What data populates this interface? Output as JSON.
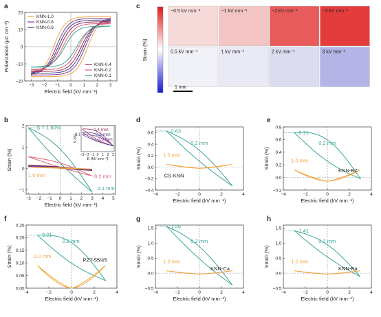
{
  "panel_letters": [
    "a",
    "b",
    "c",
    "d",
    "e",
    "f",
    "g",
    "h"
  ],
  "chart_data": [
    {
      "panel": "a",
      "type": "line",
      "xlabel": "Electric field (kV mm⁻¹)",
      "ylabel": "Polarization (μC cm⁻²)",
      "xlim": [
        -3.5,
        3.5
      ],
      "ylim": [
        -20,
        20
      ],
      "xticks": [
        -3,
        -2,
        -1,
        0,
        1,
        2,
        3
      ],
      "yticks": [
        -20,
        -10,
        0,
        10,
        20
      ],
      "legend_top": [
        "KNN-1.0",
        "KNN-0.8",
        "KNN-0.6"
      ],
      "legend_bottom": [
        "KNN-0.4",
        "KNN-0.2",
        "KNN-0.1"
      ],
      "series": [
        {
          "name": "KNN-1.0",
          "color": "#f2a640",
          "Ps": 17.5,
          "Ec": 1.3
        },
        {
          "name": "KNN-0.8",
          "color": "#7a3c9a",
          "Ps": 16.5,
          "Ec": 1.1
        },
        {
          "name": "KNN-0.6",
          "color": "#3c3c8c",
          "Ps": 15.5,
          "Ec": 0.95
        },
        {
          "name": "KNN-0.4",
          "color": "#9b2a4e",
          "Ps": 14.5,
          "Ec": 0.8
        },
        {
          "name": "KNN-0.2",
          "color": "#e0607a",
          "Ps": 13.5,
          "Ec": 0.6
        },
        {
          "name": "KNN-0.1",
          "color": "#3aa596",
          "Ps": 12,
          "Ec": 0.45
        }
      ]
    },
    {
      "panel": "b",
      "type": "line",
      "xlabel": "Electric field (kV mm⁻¹)",
      "ylabel": "Strain (%)",
      "xlim": [
        -3.2,
        5.2
      ],
      "ylim": [
        -1.2,
        2.0
      ],
      "xticks": [
        -3,
        -2,
        -1,
        0,
        1,
        2,
        3,
        4,
        5
      ],
      "yticks": [
        -1,
        0,
        1,
        2
      ],
      "annotations": [
        "S = 1.90%",
        "1.0 mm",
        "0.2 mm",
        "0.1 mm"
      ],
      "inset": {
        "xlabel": "E (kV mm⁻¹)",
        "ylabel": "S (%)",
        "xticks": [
          -3,
          -2,
          -1,
          0,
          1,
          2,
          3
        ],
        "ytick": "0.1",
        "labels": [
          "0.4 mm",
          "0.6 mm",
          "0.8 mm"
        ]
      },
      "series": [
        {
          "name": "0.1 mm",
          "color": "#3aa596",
          "Smax": 1.9,
          "Smin": -1.1,
          "width": 0.5
        },
        {
          "name": "0.2 mm",
          "color": "#e0607a",
          "Smax": 0.55,
          "Smin": -0.35,
          "width": 0.15
        },
        {
          "name": "0.4 mm",
          "color": "#9b2a4e",
          "Smax": 0.15,
          "Smin": -0.1,
          "width": 0.05
        },
        {
          "name": "0.6 mm",
          "color": "#3c3c8c",
          "Smax": 0.12,
          "Smin": -0.08,
          "width": 0.04
        },
        {
          "name": "0.8 mm",
          "color": "#7a3c9a",
          "Smax": 0.1,
          "Smin": -0.06,
          "width": 0.03
        },
        {
          "name": "1.0 mm",
          "color": "#f2a640",
          "Smax": 0.06,
          "Smin": -0.03,
          "width": 0.02
        }
      ]
    },
    {
      "panel": "c",
      "type": "heatmap",
      "colorbar_label": "Strain (%)",
      "scale_bar": "1 mm",
      "tiles": [
        {
          "label": "−0.5 kV mm⁻¹",
          "color": "#f6dada"
        },
        {
          "label": "−1 kV mm⁻¹",
          "color": "#f2c4c4"
        },
        {
          "label": "−2 kV mm⁻¹",
          "color": "#e85b5b"
        },
        {
          "label": "−3 kV mm⁻¹",
          "color": "#e43c3c"
        },
        {
          "label": "0.5 kV mm⁻¹",
          "color": "#f1f1f8"
        },
        {
          "label": "1 kV mm⁻¹",
          "color": "#eaeaf6"
        },
        {
          "label": "2 kV mm⁻¹",
          "color": "#dcdcf1"
        },
        {
          "label": "3 kV mm⁻¹",
          "color": "#b4b4e6"
        }
      ]
    },
    {
      "panel": "d",
      "type": "line",
      "label": "CS-KNN",
      "xlabel": "Electric field (kV mm⁻¹)",
      "ylabel": "Strain (%)",
      "xlim": [
        -4,
        4
      ],
      "ylim": [
        -0.4,
        0.7
      ],
      "xticks": [
        -4,
        -2,
        0,
        2,
        4
      ],
      "yticks": [
        -0.4,
        -0.2,
        0,
        0.2,
        0.4,
        0.6
      ],
      "peak_label": "0.63",
      "peak": 0.63,
      "min": -0.33,
      "width": 0.14,
      "thick_max": 0.05,
      "thick_min": -0.02,
      "series_names": [
        "0.2 mm",
        "1.0 mm"
      ]
    },
    {
      "panel": "e",
      "type": "line",
      "label": "KNN-BZ",
      "xlabel": "Electric field (kV mm⁻¹)",
      "ylabel": "Strain (%)",
      "xlim": [
        -4,
        4
      ],
      "ylim": [
        -0.2,
        0.8
      ],
      "xticks": [
        -4,
        -2,
        0,
        2,
        4
      ],
      "yticks": [
        -0.2,
        0,
        0.2,
        0.4,
        0.6,
        0.8
      ],
      "peak_label": "0.71",
      "peak": 0.71,
      "min": -0.02,
      "width": 0.25,
      "thick_max": 0.12,
      "thick_min": -0.06,
      "series_names": [
        "0.2 mm",
        "1.0 mm"
      ]
    },
    {
      "panel": "f",
      "type": "line",
      "label": "PZT-55/45",
      "xlabel": "Electric field (kV mm⁻¹)",
      "ylabel": "Strain (%)",
      "xlim": [
        -4,
        4
      ],
      "ylim": [
        0,
        0.25
      ],
      "xticks": [
        -4,
        -2,
        0,
        2,
        4
      ],
      "yticks": [
        0,
        0.05,
        0.1,
        0.15,
        0.2,
        0.25
      ],
      "peak_label": "0.21",
      "peak": 0.21,
      "min": 0.03,
      "width": 0.06,
      "thick_max": 0.09,
      "thick_min": 0.0,
      "series_names": [
        "0.2 mm",
        "1.0 mm"
      ]
    },
    {
      "panel": "g",
      "type": "line",
      "label": "KNN-Ca",
      "xlabel": "Electric field (kV mm⁻¹)",
      "ylabel": "Strain (%)",
      "xlim": [
        -4,
        4
      ],
      "ylim": [
        -0.5,
        1.6
      ],
      "xticks": [
        -4,
        -2,
        0,
        2,
        4
      ],
      "yticks": [
        -0.5,
        0,
        0.5,
        1.0,
        1.5
      ],
      "peak_label": "1.56",
      "peak": 1.56,
      "min": -0.4,
      "width": 0.3,
      "thick_max": 0.08,
      "thick_min": -0.03,
      "series_names": [
        "0.2 mm",
        "1.0 mm"
      ]
    },
    {
      "panel": "h",
      "type": "line",
      "label": "KNN-Ba",
      "xlabel": "Electric field (kV mm⁻¹)",
      "ylabel": "Strain (%)",
      "xlim": [
        -4,
        4
      ],
      "ylim": [
        -0.5,
        1.6
      ],
      "xticks": [
        -4,
        -2,
        0,
        2,
        4
      ],
      "yticks": [
        -0.5,
        0,
        0.5,
        1.0,
        1.5
      ],
      "peak_label": "1.41",
      "peak": 1.41,
      "min": -0.12,
      "width": 0.3,
      "thick_max": 0.08,
      "thick_min": -0.03,
      "series_names": [
        "0.2 mm",
        "1.0 mm"
      ]
    }
  ]
}
